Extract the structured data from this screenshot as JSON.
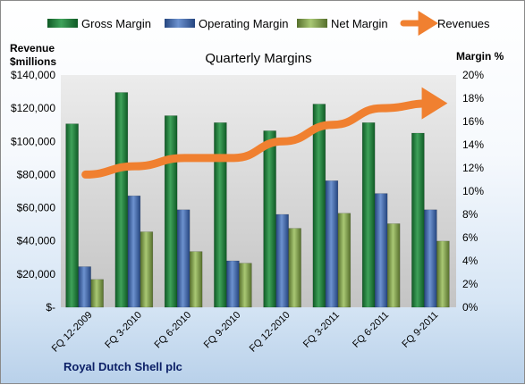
{
  "chart_data": {
    "type": "bar",
    "title": "Quarterly Margins",
    "categories": [
      "FQ 12-2009",
      "FQ 3-2010",
      "FQ 6-2010",
      "FQ 9-2010",
      "FQ 12-2010",
      "FQ 3-2011",
      "FQ 6-2011",
      "FQ 9-2011"
    ],
    "series": [
      {
        "name": "Gross Margin",
        "axis": "right",
        "unit": "%",
        "color": "#1e7a3a",
        "values": [
          15.8,
          18.5,
          16.5,
          15.9,
          15.2,
          17.5,
          15.9,
          15.0
        ]
      },
      {
        "name": "Operating Margin",
        "axis": "right",
        "unit": "%",
        "color": "#3e66a6",
        "values": [
          3.5,
          9.6,
          8.4,
          4.0,
          8.0,
          10.9,
          9.8,
          8.4
        ]
      },
      {
        "name": "Net Margin",
        "axis": "right",
        "unit": "%",
        "color": "#7fa44a",
        "values": [
          2.4,
          6.5,
          4.8,
          3.8,
          6.8,
          8.1,
          7.2,
          5.7
        ]
      },
      {
        "name": "Revenues",
        "axis": "left",
        "type": "line",
        "color": "#f08030",
        "values": [
          80000,
          85000,
          90000,
          90000,
          100000,
          110000,
          120000,
          123000
        ]
      }
    ],
    "left_axis": {
      "label": "Revenue\n$millions",
      "ylim": [
        0,
        140000
      ],
      "ticks": [
        "$-",
        "$20,000",
        "$40,000",
        "$60,000",
        "$80,000",
        "$100,000",
        "$120,000",
        "$140,000"
      ]
    },
    "right_axis": {
      "label": "Margin %",
      "ylim": [
        0,
        20
      ],
      "ticks": [
        "0%",
        "2%",
        "4%",
        "6%",
        "8%",
        "10%",
        "12%",
        "14%",
        "16%",
        "18%",
        "20%"
      ]
    },
    "grid": false,
    "legend_position": "top",
    "footer": "Royal Dutch Shell plc"
  }
}
